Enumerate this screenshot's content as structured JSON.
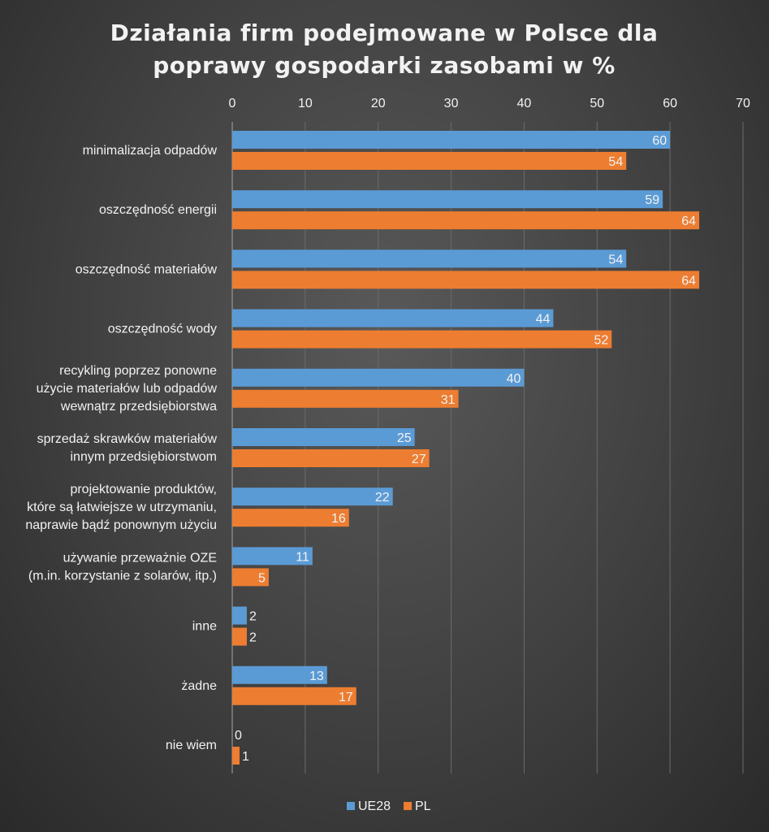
{
  "chart_data": {
    "type": "bar",
    "orientation": "horizontal",
    "title": [
      "Działania firm podejmowane w Polsce dla",
      "poprawy gospodarki zasobami  w %"
    ],
    "xlim": [
      0,
      70
    ],
    "xticks": [
      0,
      10,
      20,
      30,
      40,
      50,
      60,
      70
    ],
    "grid": true,
    "categories": [
      [
        "minimalizacja odpadów"
      ],
      [
        "oszczędność energii"
      ],
      [
        "oszczędność materiałów"
      ],
      [
        "oszczędność wody"
      ],
      [
        "recykling poprzez ponowne",
        "użycie materiałów lub odpadów",
        "wewnątrz przedsiębiorstwa"
      ],
      [
        "sprzedaż skrawków materiałów",
        "innym przedsiębiorstwom"
      ],
      [
        "projektowanie produktów,",
        "które są łatwiejsze w utrzymaniu,",
        "naprawie bądź ponownym użyciu"
      ],
      [
        "używanie przeważnie OZE",
        "(m.in. korzystanie z solarów, itp.)"
      ],
      [
        "inne"
      ],
      [
        "żadne"
      ],
      [
        "nie wiem"
      ]
    ],
    "series": [
      {
        "name": "UE28",
        "color": "#5b9bd5",
        "values": [
          60,
          59,
          54,
          44,
          40,
          25,
          22,
          11,
          2,
          13,
          0
        ]
      },
      {
        "name": "PL",
        "color": "#ed7d31",
        "values": [
          54,
          64,
          64,
          52,
          31,
          27,
          16,
          5,
          2,
          17,
          1
        ]
      }
    ],
    "legend_position": "bottom"
  }
}
